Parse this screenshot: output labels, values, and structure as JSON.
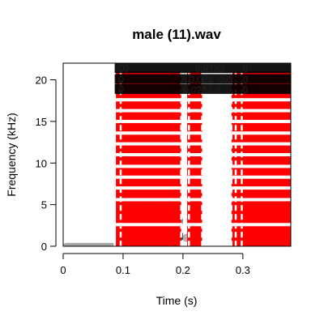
{
  "chart_data": {
    "type": "heatmap",
    "title": "male (11).wav",
    "xlabel": "Time (s)",
    "ylabel": "Frequency (kHz)",
    "xlim": [
      0,
      0.38
    ],
    "ylim": [
      0,
      22
    ],
    "x_ticks": [
      0,
      0.1,
      0.2,
      0.3
    ],
    "x_tick_labels": [
      "0",
      "0.1",
      "0.2",
      "0.3"
    ],
    "y_ticks": [
      0,
      5,
      10,
      15,
      20
    ],
    "y_tick_labels": [
      "0",
      "5",
      "10",
      "15",
      "20"
    ],
    "grid": false,
    "legend": "none",
    "spectrogram_blobs": [
      {
        "t0": 0.0,
        "t1": 0.09,
        "f": 0.2,
        "bw": 0.4,
        "level": 0.35
      },
      {
        "t0": 0.09,
        "t1": 0.2,
        "f": 1.2,
        "bw": 1.2,
        "level": 0.75
      },
      {
        "t0": 0.09,
        "t1": 0.2,
        "f": 3.0,
        "bw": 1.0,
        "level": 0.45
      },
      {
        "t0": 0.1,
        "t1": 0.19,
        "f": 5.5,
        "bw": 1.5,
        "level": 0.2
      },
      {
        "t0": 0.2,
        "t1": 0.23,
        "f": 1.0,
        "bw": 1.0,
        "level": 0.3
      },
      {
        "t0": 0.29,
        "t1": 0.38,
        "f": 1.0,
        "bw": 1.2,
        "level": 0.6
      },
      {
        "t0": 0.29,
        "t1": 0.38,
        "f": 2.8,
        "bw": 0.8,
        "level": 0.5
      }
    ],
    "segments": [
      {
        "t0": 0.088,
        "t1": 0.197
      },
      {
        "t0": 0.207,
        "t1": 0.232
      },
      {
        "t0": 0.281,
        "t1": 0.38
      }
    ],
    "boundaries": [
      0.086,
      0.096,
      0.197,
      0.21,
      0.232,
      0.281,
      0.288,
      0.298
    ],
    "segment_band_range": [
      0,
      21
    ],
    "band_gap_centers": [
      2.6,
      5.6,
      7.0,
      8.3,
      9.6,
      11.0,
      12.3,
      13.6,
      15.0,
      16.3,
      17.6
    ],
    "label_rows": [
      {
        "f": 21.3,
        "labels": [
          {
            "t": 0.092,
            "text": "0"
          },
          {
            "t": 0.1,
            "text": "0"
          },
          {
            "t": 0.22,
            "text": "0.0130"
          },
          {
            "t": 0.3,
            "text": "0"
          }
        ]
      },
      {
        "f": 20.0,
        "labels": [
          {
            "t": 0.092,
            "text": "0"
          },
          {
            "t": 0.21,
            "text": "0.052"
          },
          {
            "t": 0.26,
            "text": "0.0"
          },
          {
            "t": 0.3,
            "text": "0"
          }
        ]
      },
      {
        "f": 18.8,
        "labels": [
          {
            "t": 0.092,
            "text": "0"
          },
          {
            "t": 0.2,
            "text": "0.021"
          },
          {
            "t": 0.24,
            "text": "0.0"
          },
          {
            "t": 0.3,
            "text": "0"
          }
        ]
      }
    ],
    "colors": {
      "segment": "#ff0000",
      "boundary": "#ffffff",
      "label": "#000000",
      "background": "#ffffff",
      "spectrogram": "#000000"
    }
  }
}
